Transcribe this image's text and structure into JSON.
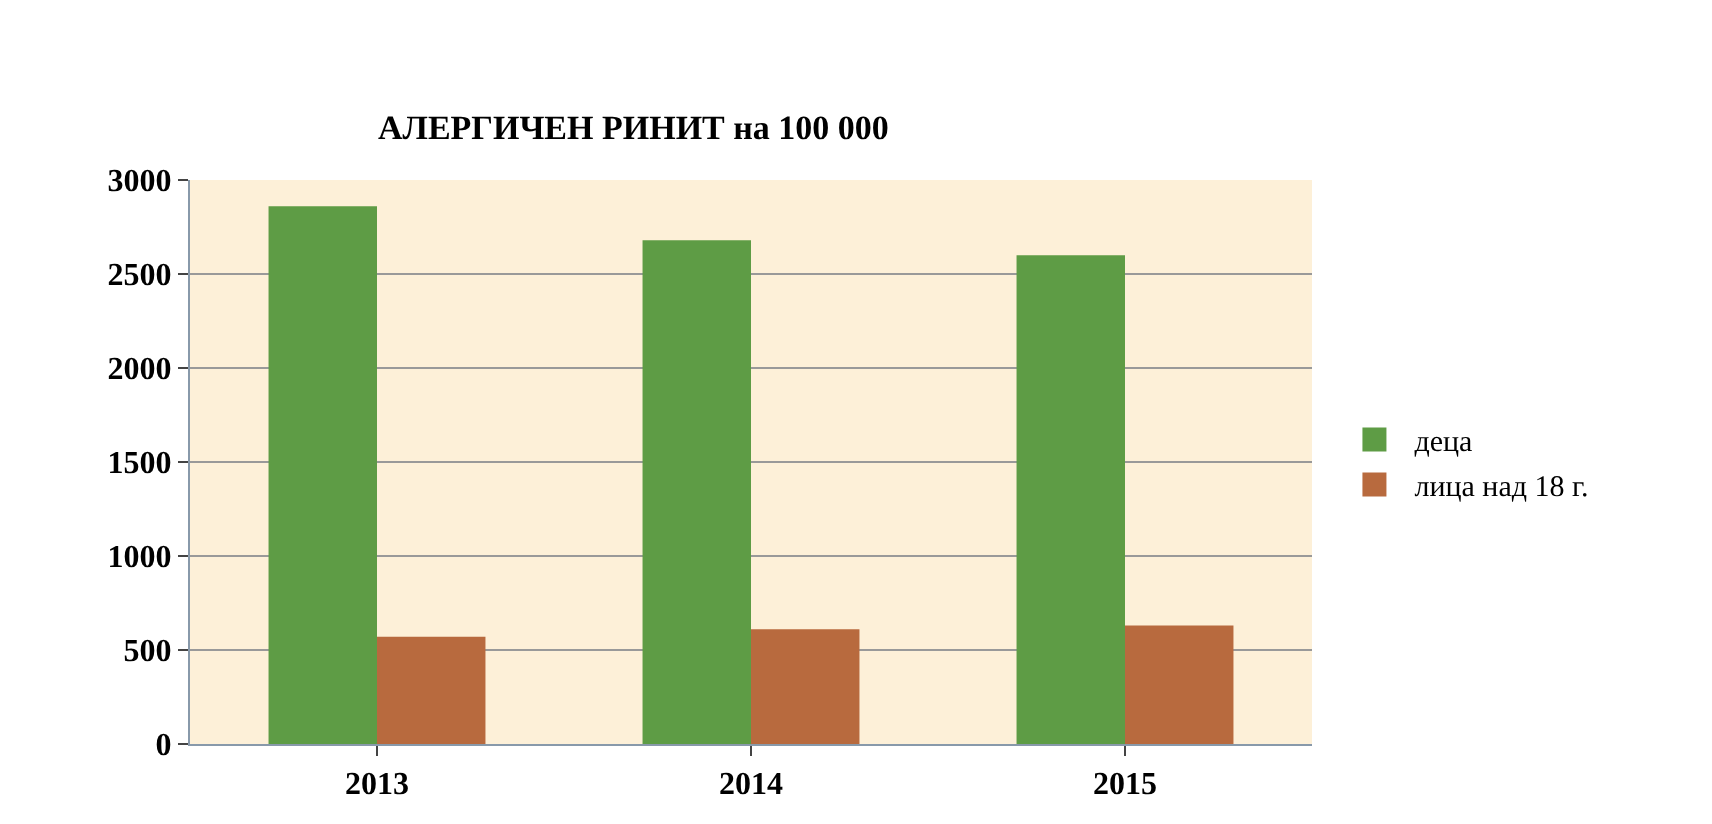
{
  "chart_data": {
    "type": "bar",
    "title": "АЛЕРГИЧЕН РИНИТ на 100 000",
    "categories": [
      "2013",
      "2014",
      "2015"
    ],
    "series": [
      {
        "name": "деца",
        "color": "#5e9c45",
        "values": [
          2860,
          2680,
          2600
        ]
      },
      {
        "name": "лица над 18 г.",
        "color": "#b86a3e",
        "values": [
          570,
          610,
          630
        ]
      }
    ],
    "ylim": [
      0,
      3000
    ],
    "yticks": [
      0,
      500,
      1000,
      1500,
      2000,
      2500,
      3000
    ],
    "grid": "y",
    "legend": "right"
  }
}
